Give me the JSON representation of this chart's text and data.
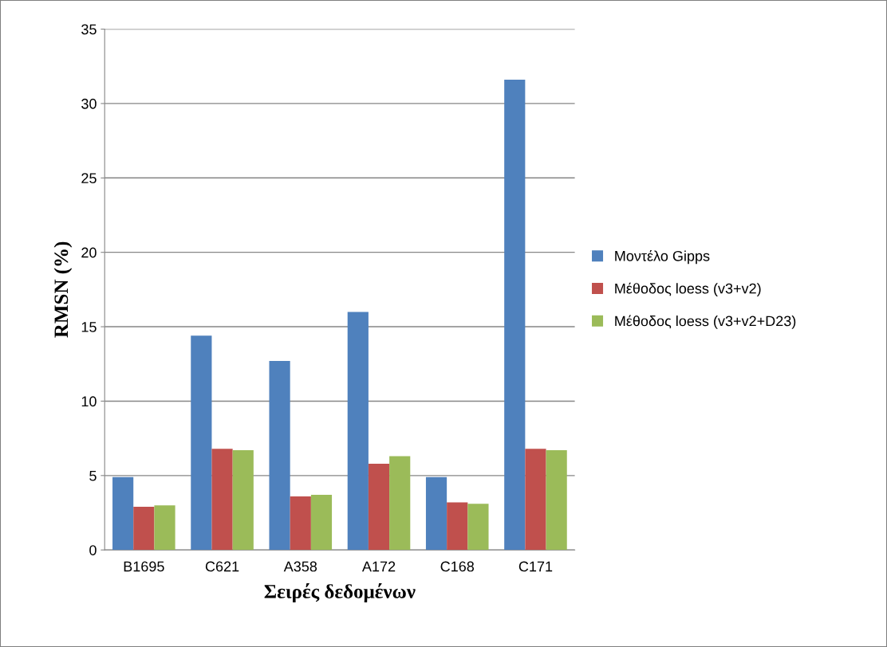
{
  "chart_data": {
    "type": "bar",
    "xlabel": "Σειρές δεδομένων",
    "ylabel": "RMSN (%)",
    "categories": [
      "B1695",
      "C621",
      "A358",
      "A172",
      "C168",
      "C171"
    ],
    "series": [
      {
        "name": "Μοντέλο Gipps",
        "color": "#4f81bd",
        "values": [
          4.9,
          14.4,
          12.7,
          16.0,
          4.9,
          31.6
        ]
      },
      {
        "name": "Μέθοδος loess (v3+v2)",
        "color": "#c0504d",
        "values": [
          2.9,
          6.8,
          3.6,
          5.8,
          3.2,
          6.8
        ]
      },
      {
        "name": "Μέθοδος loess (v3+v2+D23)",
        "color": "#9bbb59",
        "values": [
          3.0,
          6.7,
          3.7,
          6.3,
          3.1,
          6.7
        ]
      }
    ],
    "ylim": [
      0,
      35
    ],
    "yticks": [
      0,
      5,
      10,
      15,
      20,
      25,
      30,
      35
    ],
    "grid": "y",
    "legend": "right"
  }
}
